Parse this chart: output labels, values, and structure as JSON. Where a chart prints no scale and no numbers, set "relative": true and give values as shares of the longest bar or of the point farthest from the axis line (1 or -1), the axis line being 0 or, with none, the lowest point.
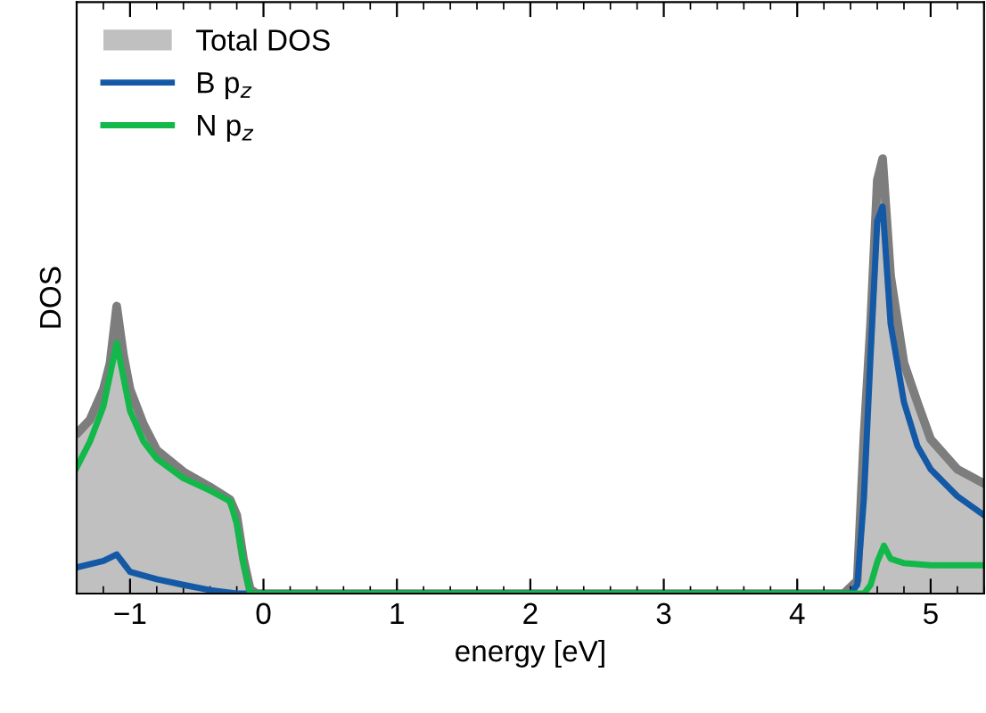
{
  "chart_data": {
    "type": "line",
    "xlabel": "energy [eV]",
    "ylabel": "DOS",
    "relative": true,
    "xlim": [
      -1.4,
      5.4
    ],
    "xticks": [
      {
        "value": -1,
        "label": "−1"
      },
      0,
      1,
      2,
      3,
      4,
      5
    ],
    "legend": "top left",
    "grid": false,
    "series": [
      {
        "name": "Total DOS",
        "type": "area",
        "color": "#c0c0c0",
        "x": [
          -1.4,
          -1.3,
          -1.2,
          -1.15,
          -1.1,
          -1.05,
          -1.0,
          -0.9,
          -0.8,
          -0.6,
          -0.4,
          -0.25,
          -0.2,
          -0.15,
          -0.1,
          -0.05,
          4.35,
          4.45,
          4.5,
          4.55,
          4.6,
          4.64,
          4.7,
          4.8,
          4.9,
          5.0,
          5.2,
          5.4
        ],
        "values": [
          0.367,
          0.4,
          0.47,
          0.53,
          0.661,
          0.55,
          0.47,
          0.39,
          0.33,
          0.28,
          0.245,
          0.216,
          0.18,
          0.08,
          0.01,
          0,
          0,
          0.03,
          0.36,
          0.62,
          0.95,
          1.0,
          0.73,
          0.53,
          0.44,
          0.355,
          0.286,
          0.253
        ]
      },
      {
        "name": "B p$_{z}$",
        "color": "#1459a6",
        "x": [
          -1.4,
          -1.2,
          -1.1,
          -1.0,
          -0.8,
          -0.6,
          -0.4,
          -0.2,
          4.4,
          4.45,
          4.5,
          4.55,
          4.6,
          4.64,
          4.7,
          4.8,
          4.9,
          5.0,
          5.2,
          5.4
        ],
        "values": [
          0.06,
          0.075,
          0.09,
          0.05,
          0.033,
          0.02,
          0.008,
          0,
          0,
          0.02,
          0.22,
          0.55,
          0.857,
          0.89,
          0.62,
          0.44,
          0.34,
          0.286,
          0.224,
          0.18
        ]
      },
      {
        "name": "N p$_{z}$",
        "color": "#13b84a",
        "x": [
          -1.4,
          -1.3,
          -1.2,
          -1.1,
          -1.0,
          -0.9,
          -0.8,
          -0.6,
          -0.4,
          -0.25,
          -0.2,
          -0.15,
          -0.1,
          4.5,
          4.55,
          4.6,
          4.65,
          4.7,
          4.8,
          5.0,
          5.4
        ],
        "values": [
          0.29,
          0.35,
          0.43,
          0.576,
          0.42,
          0.35,
          0.31,
          0.265,
          0.237,
          0.212,
          0.16,
          0.07,
          0,
          0,
          0.02,
          0.073,
          0.11,
          0.08,
          0.07,
          0.065,
          0.065
        ]
      }
    ]
  }
}
